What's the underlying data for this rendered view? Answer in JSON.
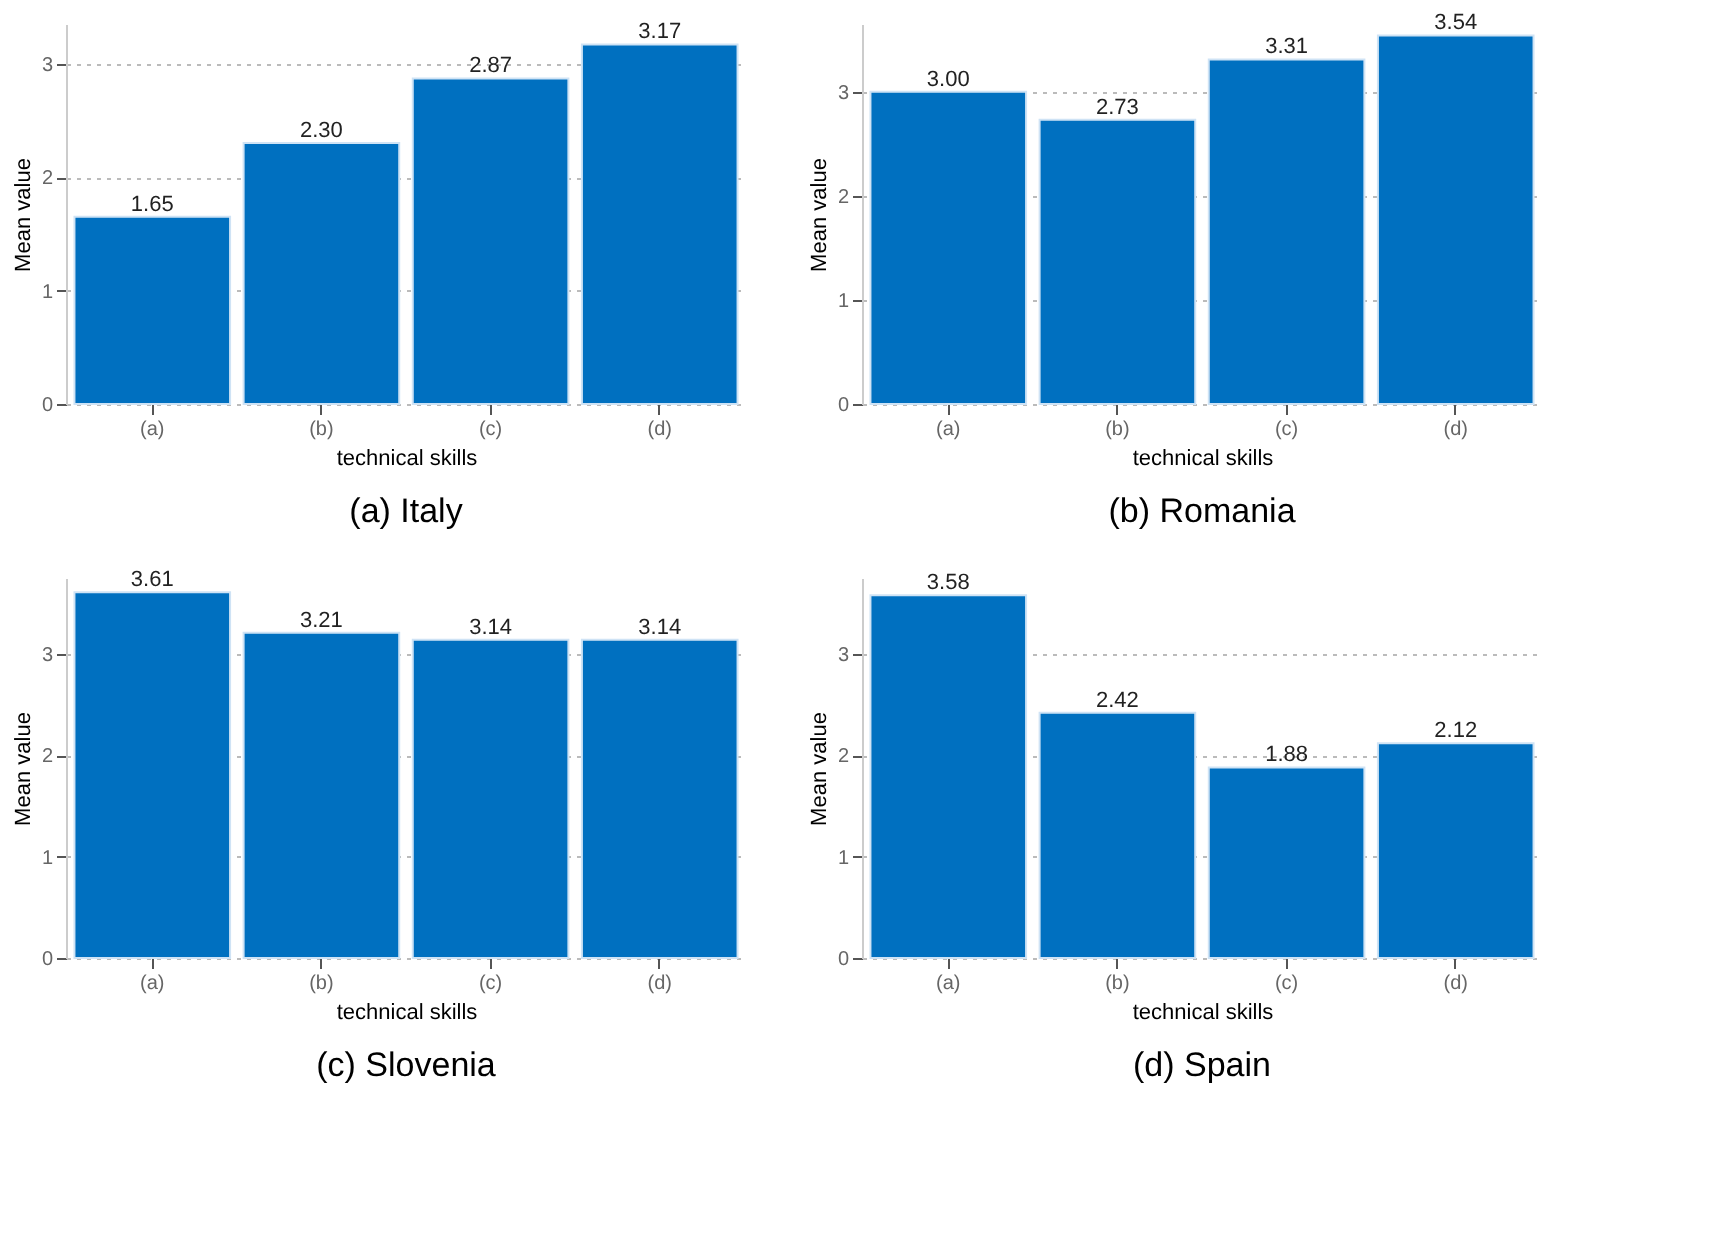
{
  "chart_data": [
    {
      "type": "bar",
      "title": "(a) Italy",
      "xlabel": "technical skills",
      "ylabel": "Mean value",
      "categories": [
        "(a)",
        "(b)",
        "(c)",
        "(d)"
      ],
      "values": [
        1.65,
        2.3,
        2.87,
        3.17
      ],
      "value_labels": [
        "1.65",
        "2.30",
        "2.87",
        "3.17"
      ],
      "color": "#0070c0",
      "ylim": [
        0,
        3.35
      ],
      "yticks": [
        0,
        1,
        2,
        3
      ],
      "grid": "y"
    },
    {
      "type": "bar",
      "title": "(b) Romania",
      "xlabel": "technical skills",
      "ylabel": "Mean value",
      "categories": [
        "(a)",
        "(b)",
        "(c)",
        "(d)"
      ],
      "values": [
        3.0,
        2.73,
        3.31,
        3.54
      ],
      "value_labels": [
        "3.00",
        "2.73",
        "3.31",
        "3.54"
      ],
      "color": "#0070c0",
      "ylim": [
        0,
        3.65
      ],
      "yticks": [
        0,
        1,
        2,
        3
      ],
      "grid": "y"
    },
    {
      "type": "bar",
      "title": "(c) Slovenia",
      "xlabel": "technical skills",
      "ylabel": "Mean value",
      "categories": [
        "(a)",
        "(b)",
        "(c)",
        "(d)"
      ],
      "values": [
        3.61,
        3.21,
        3.14,
        3.14
      ],
      "value_labels": [
        "3.61",
        "3.21",
        "3.14",
        "3.14"
      ],
      "color": "#0070c0",
      "ylim": [
        0,
        3.75
      ],
      "yticks": [
        0,
        1,
        2,
        3
      ],
      "grid": "y"
    },
    {
      "type": "bar",
      "title": "(d) Spain",
      "xlabel": "technical skills",
      "ylabel": "Mean value",
      "categories": [
        "(a)",
        "(b)",
        "(c)",
        "(d)"
      ],
      "values": [
        3.58,
        2.42,
        1.88,
        2.12
      ],
      "value_labels": [
        "3.58",
        "2.42",
        "1.88",
        "2.12"
      ],
      "color": "#0070c0",
      "ylim": [
        0,
        3.75
      ],
      "yticks": [
        0,
        1,
        2,
        3
      ],
      "grid": "y"
    }
  ]
}
